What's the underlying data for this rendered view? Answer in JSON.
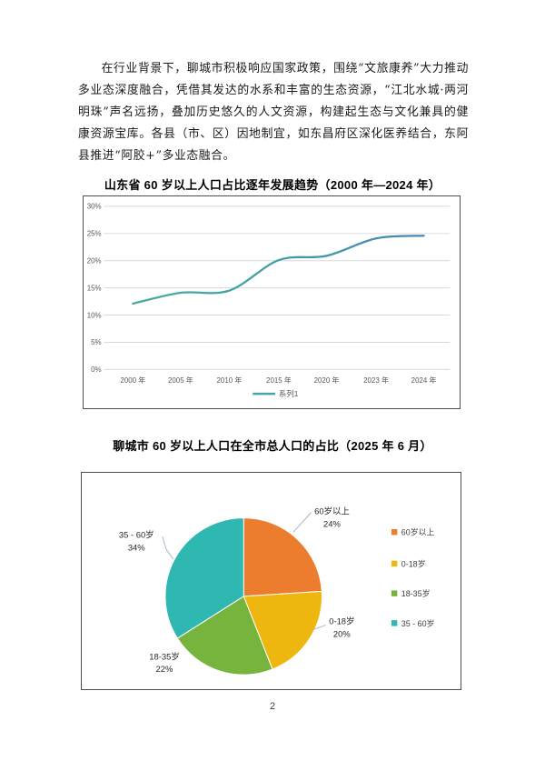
{
  "page": {
    "paragraph": "在行业背景下，聊城市积极响应国家政策，围绕“文旅康养”大力推动多业态深度融合，凭借其发达的水系和丰富的生态资源，“江北水城·两河明珠”声名远扬，叠加历史悠久的人文资源，构建起生态与文化兼具的健康资源宝库。各县（市、区）因地制宜，如东昌府区深化医养结合，东阿县推进“阿胶+”多业态融合。",
    "page_number": "2"
  },
  "chart_data": [
    {
      "type": "line",
      "title": "山东省 60 岁以上人口占比逐年发展趋势（2000 年—2024 年）",
      "categories": [
        "2000 年",
        "2005 年",
        "2010 年",
        "2015 年",
        "2020 年",
        "2023 年",
        "2024 年"
      ],
      "series": [
        {
          "name": "系列1",
          "values": [
            12.1,
            14.1,
            14.5,
            20.1,
            20.9,
            24.1,
            24.6
          ]
        }
      ],
      "xlabel": "",
      "ylabel": "",
      "ylim": [
        0,
        30
      ],
      "ytick_step": 5,
      "ytick_suffix": "%",
      "grid": true,
      "legend_position": "bottom",
      "line_gradient": [
        "#4BAB9C",
        "#3FA0A6",
        "#4B84B0"
      ],
      "legend_marker_color": "#43A8A5",
      "grid_color": "#D9D9D9",
      "axis_text_color": "#595959",
      "border_color": "#4D4D4D"
    },
    {
      "type": "pie",
      "title": "聊城市 60 岁以上人口在全市总人口的占比（2025 年 6 月）",
      "categories": [
        "60岁以上",
        "0-18岁",
        "18-35岁",
        "35 - 60岁"
      ],
      "values": [
        24,
        20,
        22,
        34
      ],
      "unit": "%",
      "colors": [
        "#EC7D2F",
        "#EDB70F",
        "#77B43D",
        "#2FB7B1"
      ],
      "start_angle_deg": 0,
      "direction": "clockwise",
      "legend_position": "right",
      "label_text_color": "#262626",
      "legend_text_color": "#404040",
      "leader_line_color": "#A3B8CC",
      "slice_stroke_color": "#FFFFFF",
      "border_color": "#4D4D4D"
    }
  ]
}
